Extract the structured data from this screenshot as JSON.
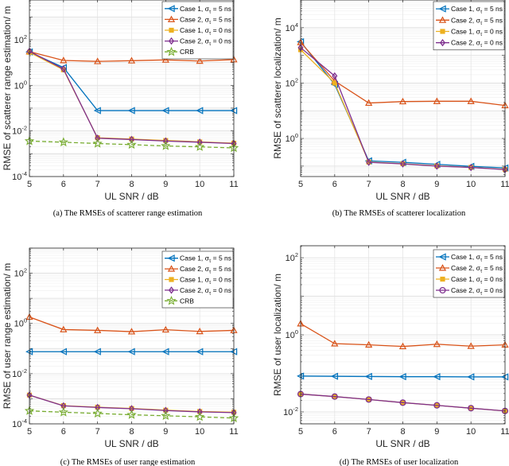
{
  "colors": {
    "case1_sigma5": "#0072BD",
    "case2_sigma5": "#D95319",
    "case1_sigma0": "#EDB120",
    "case2_sigma0": "#7E2F8E",
    "crb": "#77AC30",
    "axis": "#262626",
    "grid": "#e6e6e6"
  },
  "chart_data": [
    {
      "id": "a",
      "type": "line",
      "scale": "log",
      "title": "",
      "caption": "(a) The RMSEs of scatterer range estimation",
      "xlabel": "UL SNR / dB",
      "ylabel": "RMSE of scatterer range estimation/ m",
      "x": [
        5,
        6,
        7,
        8,
        9,
        10,
        11
      ],
      "xticks": [
        "5",
        "6",
        "7",
        "8",
        "9",
        "10",
        "11"
      ],
      "yticks": [
        {
          "base": "10",
          "exp": "-4",
          "value": 0.0001
        },
        {
          "base": "10",
          "exp": "-2",
          "value": 0.01
        },
        {
          "base": "10",
          "exp": "0",
          "value": 1
        },
        {
          "base": "10",
          "exp": "2",
          "value": 100
        }
      ],
      "ylim": [
        0.0001,
        5500
      ],
      "grid": true,
      "legend_position": "top-right",
      "series": [
        {
          "name": "Case 1, σ_τ = 5 ns",
          "label_main": "Case 1, σ",
          "label_sub": "τ",
          "label_tail": " = 5 ns",
          "color_key": "case1_sigma5",
          "marker": "triangle-left",
          "dash": false,
          "values": [
            29,
            6.0,
            0.078,
            0.078,
            0.078,
            0.078,
            0.078
          ]
        },
        {
          "name": "Case 2, σ_τ = 5 ns",
          "label_main": "Case 2, σ",
          "label_sub": "τ",
          "label_tail": " = 5 ns",
          "color_key": "case2_sigma5",
          "marker": "triangle-up",
          "dash": false,
          "values": [
            30,
            12.3,
            11.2,
            12.0,
            13.0,
            11.6,
            13.4
          ]
        },
        {
          "name": "Case 1, σ_τ = 0 ns",
          "label_main": "Case 1, σ",
          "label_sub": "τ",
          "label_tail": " = 0 ns",
          "color_key": "case1_sigma0",
          "marker": "square",
          "dash": false,
          "values": [
            28,
            4.8,
            0.005,
            0.0044,
            0.0038,
            0.0033,
            0.0029
          ]
        },
        {
          "name": "Case 2, σ_τ = 0 ns",
          "label_main": "Case 2, σ",
          "label_sub": "τ",
          "label_tail": " = 0 ns",
          "color_key": "case2_sigma0",
          "marker": "diamond",
          "dash": false,
          "values": [
            31,
            5.2,
            0.0048,
            0.0042,
            0.0036,
            0.0032,
            0.0028
          ]
        },
        {
          "name": "CRB",
          "label_main": "CRB",
          "label_sub": "",
          "label_tail": "",
          "color_key": "crb",
          "marker": "star",
          "dash": true,
          "values": [
            0.0036,
            0.0032,
            0.0028,
            0.0025,
            0.0022,
            0.002,
            0.0018
          ]
        }
      ]
    },
    {
      "id": "b",
      "type": "line",
      "scale": "log",
      "title": "",
      "caption": "(b) The RMSEs of scatterer localization",
      "xlabel": "UL SNR / dB",
      "ylabel": "RMSE of scatterer localization/ m",
      "x": [
        5,
        6,
        7,
        8,
        9,
        10,
        11
      ],
      "xticks": [
        "5",
        "6",
        "7",
        "8",
        "9",
        "10",
        "11"
      ],
      "yticks": [
        {
          "base": "10",
          "exp": "0",
          "value": 1
        },
        {
          "base": "10",
          "exp": "2",
          "value": 100
        },
        {
          "base": "10",
          "exp": "4",
          "value": 10000
        }
      ],
      "ylim": [
        0.042,
        100000
      ],
      "grid": true,
      "legend_position": "top-right",
      "series": [
        {
          "name": "Case 1, σ_τ = 5 ns",
          "label_main": "Case 1, σ",
          "label_sub": "τ",
          "label_tail": " = 5 ns",
          "color_key": "case1_sigma5",
          "marker": "triangle-left",
          "dash": false,
          "values": [
            3100,
            89,
            0.155,
            0.137,
            0.116,
            0.098,
            0.086
          ]
        },
        {
          "name": "Case 2, σ_τ = 5 ns",
          "label_main": "Case 2, σ",
          "label_sub": "τ",
          "label_tail": " = 5 ns",
          "color_key": "case2_sigma5",
          "marker": "triangle-up",
          "dash": false,
          "values": [
            2950,
            118,
            19,
            21.5,
            22,
            22,
            15.5
          ]
        },
        {
          "name": "Case 1, σ_τ = 0 ns",
          "label_main": "Case 1, σ",
          "label_sub": "τ",
          "label_tail": " = 0 ns",
          "color_key": "case1_sigma0",
          "marker": "square",
          "dash": false,
          "values": [
            1600,
            100,
            0.14,
            0.122,
            0.102,
            0.09,
            0.076
          ]
        },
        {
          "name": "Case 2, σ_τ = 0 ns",
          "label_main": "Case 2, σ",
          "label_sub": "τ",
          "label_tail": " = 0 ns",
          "color_key": "case2_sigma0",
          "marker": "diamond",
          "dash": false,
          "values": [
            1900,
            180,
            0.137,
            0.12,
            0.1,
            0.089,
            0.075
          ]
        }
      ]
    },
    {
      "id": "c",
      "type": "line",
      "scale": "log",
      "title": "",
      "caption": "(c) The RMSEs of user range estimation",
      "xlabel": "UL SNR / dB",
      "ylabel": "RMSE of user range estimation/ m",
      "x": [
        5,
        6,
        7,
        8,
        9,
        10,
        11
      ],
      "xticks": [
        "5",
        "6",
        "7",
        "8",
        "9",
        "10",
        "11"
      ],
      "yticks": [
        {
          "base": "10",
          "exp": "-4",
          "value": 0.0001
        },
        {
          "base": "10",
          "exp": "-2",
          "value": 0.01
        },
        {
          "base": "10",
          "exp": "0",
          "value": 1
        },
        {
          "base": "10",
          "exp": "2",
          "value": 100
        }
      ],
      "ylim": [
        0.0001,
        1000
      ],
      "grid": true,
      "legend_position": "top-right",
      "series": [
        {
          "name": "Case 1, σ_τ = 5 ns",
          "label_main": "Case 1, σ",
          "label_sub": "τ",
          "label_tail": " = 5 ns",
          "color_key": "case1_sigma5",
          "marker": "triangle-left",
          "dash": false,
          "values": [
            0.075,
            0.075,
            0.075,
            0.075,
            0.075,
            0.075,
            0.075
          ]
        },
        {
          "name": "Case 2, σ_τ = 5 ns",
          "label_main": "Case 2, σ",
          "label_sub": "τ",
          "label_tail": " = 5 ns",
          "color_key": "case2_sigma5",
          "marker": "triangle-up",
          "dash": false,
          "values": [
            1.8,
            0.57,
            0.53,
            0.47,
            0.56,
            0.48,
            0.53
          ]
        },
        {
          "name": "Case 1, σ_τ = 0 ns",
          "label_main": "Case 1, σ",
          "label_sub": "τ",
          "label_tail": " = 0 ns",
          "color_key": "case1_sigma0",
          "marker": "square",
          "dash": false,
          "values": [
            0.0014,
            0.00053,
            0.00046,
            0.00041,
            0.00035,
            0.00031,
            0.00029
          ]
        },
        {
          "name": "Case 2, σ_τ = 0 ns",
          "label_main": "Case 2, σ",
          "label_sub": "τ",
          "label_tail": " = 0 ns",
          "color_key": "case2_sigma0",
          "marker": "diamond",
          "dash": false,
          "values": [
            0.0014,
            0.00052,
            0.00045,
            0.0004,
            0.00034,
            0.0003,
            0.00028
          ]
        },
        {
          "name": "CRB",
          "label_main": "CRB",
          "label_sub": "",
          "label_tail": "",
          "color_key": "crb",
          "marker": "star",
          "dash": true,
          "values": [
            0.00033,
            0.00029,
            0.00026,
            0.00023,
            0.00021,
            0.00019,
            0.00017
          ]
        }
      ]
    },
    {
      "id": "d",
      "type": "line",
      "scale": "log",
      "title": "",
      "caption": "(d) The RMSEs of user localization",
      "xlabel": "UL SNR / dB",
      "ylabel": "RMSE of user localization/ m",
      "x": [
        5,
        6,
        7,
        8,
        9,
        10,
        11
      ],
      "xticks": [
        "5",
        "6",
        "7",
        "8",
        "9",
        "10",
        "11"
      ],
      "yticks": [
        {
          "base": "10",
          "exp": "-2",
          "value": 0.01
        },
        {
          "base": "10",
          "exp": "0",
          "value": 1
        },
        {
          "base": "10",
          "exp": "2",
          "value": 100
        }
      ],
      "ylim": [
        0.0049,
        205
      ],
      "grid": true,
      "legend_position": "top-right",
      "series": [
        {
          "name": "Case 1, σ_τ = 5 ns",
          "label_main": "Case 1, σ",
          "label_sub": "τ",
          "label_tail": " = 5 ns",
          "color_key": "case1_sigma5",
          "marker": "triangle-left",
          "dash": false,
          "values": [
            0.085,
            0.084,
            0.083,
            0.082,
            0.082,
            0.081,
            0.081
          ]
        },
        {
          "name": "Case 2, σ_τ = 5 ns",
          "label_main": "Case 2, σ",
          "label_sub": "τ",
          "label_tail": " = 5 ns",
          "color_key": "case2_sigma5",
          "marker": "triangle-up",
          "dash": false,
          "values": [
            1.95,
            0.59,
            0.55,
            0.5,
            0.57,
            0.51,
            0.55
          ]
        },
        {
          "name": "Case 1, σ_τ = 0 ns",
          "label_main": "Case 1, σ",
          "label_sub": "τ",
          "label_tail": " = 0 ns",
          "color_key": "case1_sigma0",
          "marker": "square",
          "dash": false,
          "values": [
            0.029,
            0.025,
            0.021,
            0.0174,
            0.0148,
            0.0125,
            0.0106
          ]
        },
        {
          "name": "Case 2, σ_τ = 0 ns",
          "label_main": "Case 2, σ",
          "label_sub": "τ",
          "label_tail": " = 0 ns",
          "color_key": "case2_sigma0",
          "marker": "circle",
          "dash": false,
          "values": [
            0.029,
            0.025,
            0.021,
            0.0174,
            0.0148,
            0.0125,
            0.0106
          ]
        }
      ]
    }
  ]
}
